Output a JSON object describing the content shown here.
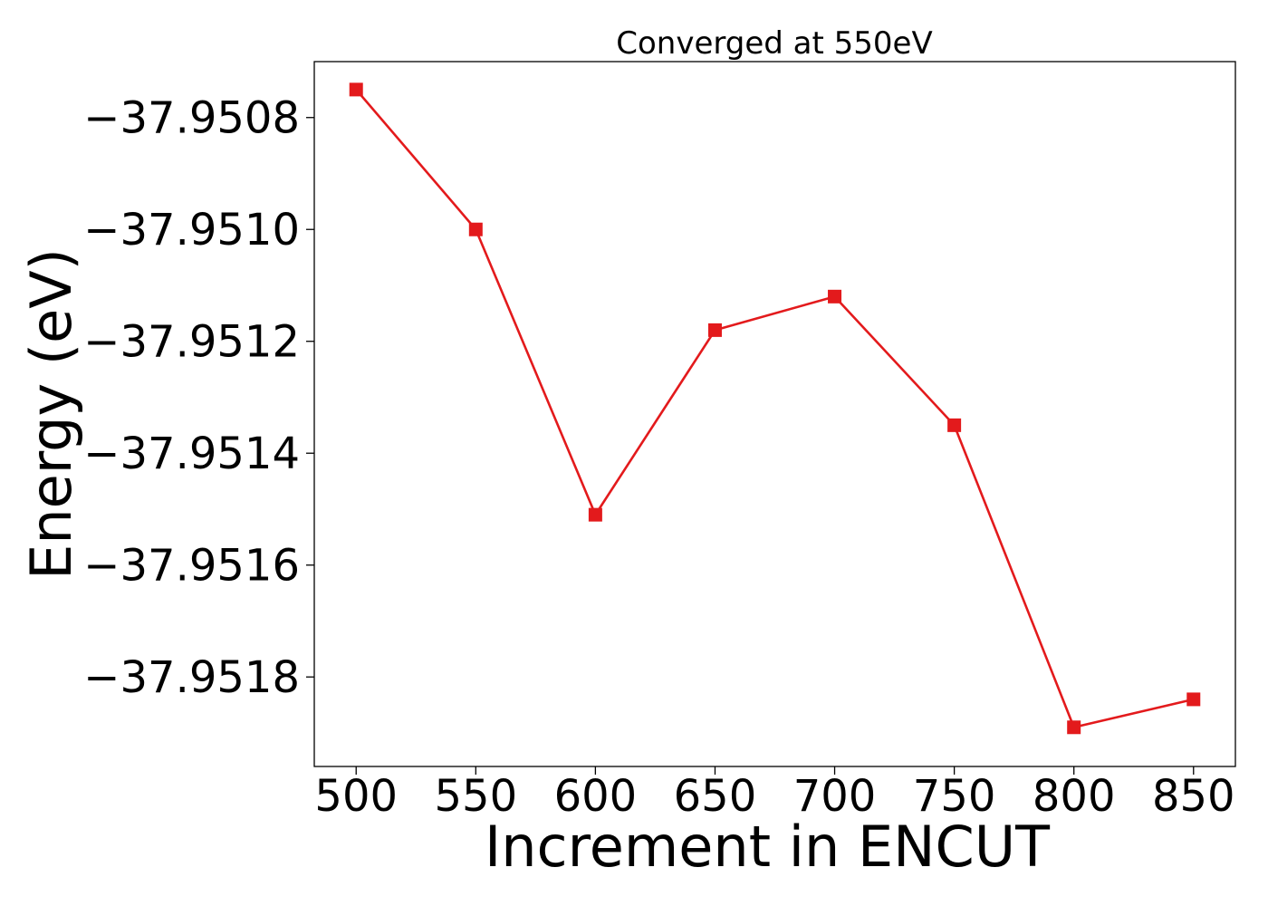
{
  "chart_data": {
    "type": "line",
    "title": "Converged at 550eV",
    "xlabel": "Increment in ENCUT",
    "ylabel": "Energy (eV)",
    "x": [
      500,
      550,
      600,
      650,
      700,
      750,
      800,
      850
    ],
    "series": [
      {
        "values": [
          -37.95075,
          -37.951,
          -37.95151,
          -37.95118,
          -37.95112,
          -37.95135,
          -37.95189,
          -37.95184
        ],
        "color": "#e31a1c",
        "marker": "square"
      }
    ],
    "xticks": [
      500,
      550,
      600,
      650,
      700,
      750,
      800,
      850
    ],
    "xtick_labels": [
      "500",
      "550",
      "600",
      "650",
      "700",
      "750",
      "800",
      "850"
    ],
    "yticks": [
      -37.9508,
      -37.951,
      -37.9512,
      -37.9514,
      -37.9516,
      -37.9518
    ],
    "ytick_labels": [
      "−37.9508",
      "−37.9510",
      "−37.9512",
      "−37.9514",
      "−37.9516",
      "−37.9518"
    ],
    "xlim": [
      482.5,
      867.5
    ],
    "ylim": [
      -37.95196,
      -37.9507
    ],
    "grid": false,
    "legend": "none"
  }
}
